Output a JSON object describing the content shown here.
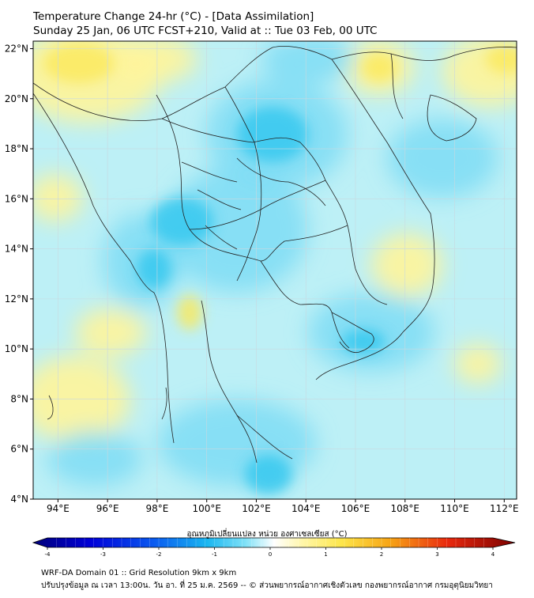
{
  "header": {
    "title": "Temperature Change 24-hr (°C) - [Data Assimilation]",
    "subtitle": "Sunday 25 Jan, 06 UTC FCST+210, Valid at :: Tue 03 Feb, 00 UTC"
  },
  "map": {
    "lat_labels": [
      "22°N",
      "20°N",
      "18°N",
      "16°N",
      "14°N",
      "12°N",
      "10°N",
      "8°N",
      "6°N",
      "4°N"
    ],
    "lon_labels": [
      "94°E",
      "96°E",
      "98°E",
      "100°E",
      "102°E",
      "104°E",
      "106°E",
      "108°E",
      "110°E",
      "112°E"
    ],
    "lat_range": [
      4,
      22.3
    ],
    "lon_range": [
      93,
      112.5
    ],
    "colors": {
      "base": "#bdf0f6",
      "cold_strong": "#35c8ee",
      "cold": "#7edcf5",
      "warm": "#fff49a",
      "warm_strong": "#fbe95a",
      "grid": "#c9d8df",
      "border": "#222222"
    }
  },
  "colorbar": {
    "label": "อุณหภูมิเปลี่ยนแปลง หน่วย องศาเซลเซียส (°C)",
    "ticks": [
      "-4",
      "-3",
      "-2",
      "-1",
      "0",
      "1",
      "2",
      "3",
      "4"
    ],
    "range": [
      -4,
      4
    ]
  },
  "footer": {
    "line1": "WRF-DA Domain 01 :: Grid Resolution 9km x 9km",
    "line2": "ปรับปรุงข้อมูล ณ เวลา 13:00น. วัน อา. ที่ 25 ม.ค. 2569 -- © ส่วนพยากรณ์อากาศเชิงตัวเลข กองพยากรณ์อากาศ กรมอุตุนิยมวิทยา"
  }
}
